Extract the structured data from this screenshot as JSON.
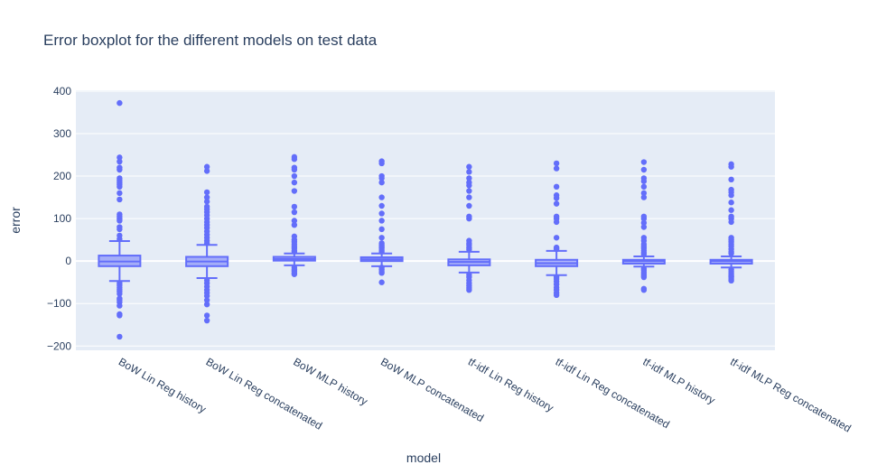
{
  "chart_data": {
    "type": "box",
    "title": "Error boxplot for the different models on test data",
    "xlabel": "model",
    "ylabel": "error",
    "ylim": [
      -210,
      402
    ],
    "yticks": [
      -200,
      -100,
      0,
      100,
      200,
      300,
      400
    ],
    "ytick_labels": [
      "−200",
      "−100",
      "0",
      "100",
      "200",
      "300",
      "400"
    ],
    "grid": true,
    "color": "#636efa",
    "plot_bg": "#e5ecf6",
    "categories": [
      "BoW Lin Reg history",
      "BoW Lin Reg concatenated",
      "BoW MLP history",
      "BoW MLP concatenated",
      "tf-idf Lin Reg history",
      "tf-idf Lin Reg concatenated",
      "tf-idf MLP history",
      "tf-idf MLP Reg concatenated"
    ],
    "boxes": [
      {
        "q1": -12,
        "median": -1,
        "q3": 13,
        "lower_fence": -47,
        "upper_fence": 47,
        "outliers": [
          372,
          244,
          234,
          220,
          215,
          195,
          190,
          185,
          180,
          175,
          160,
          145,
          110,
          105,
          100,
          95,
          80,
          75,
          60,
          52,
          -52,
          -57,
          -62,
          -67,
          -72,
          -77,
          -88,
          -92,
          -97,
          -105,
          -125,
          -128,
          -178
        ]
      },
      {
        "q1": -12,
        "median": -1,
        "q3": 10,
        "lower_fence": -40,
        "upper_fence": 38,
        "outliers": [
          222,
          212,
          162,
          150,
          140,
          128,
          122,
          115,
          108,
          100,
          92,
          85,
          78,
          70,
          62,
          55,
          48,
          42,
          -45,
          -52,
          -60,
          -68,
          -75,
          -82,
          -92,
          -102,
          -128,
          -140
        ]
      },
      {
        "q1": 1,
        "median": 5,
        "q3": 10,
        "lower_fence": -10,
        "upper_fence": 18,
        "outliers": [
          245,
          240,
          220,
          215,
          200,
          185,
          165,
          128,
          115,
          95,
          85,
          58,
          50,
          45,
          40,
          35,
          30,
          25,
          22,
          -15,
          -20,
          -24,
          -28,
          -31
        ]
      },
      {
        "q1": 0,
        "median": 4,
        "q3": 9,
        "lower_fence": -12,
        "upper_fence": 18,
        "outliers": [
          235,
          230,
          200,
          195,
          185,
          150,
          130,
          112,
          95,
          75,
          55,
          42,
          38,
          34,
          30,
          26,
          22,
          -15,
          -20,
          -25,
          -28,
          -50
        ]
      },
      {
        "q1": -10,
        "median": -2,
        "q3": 4,
        "lower_fence": -27,
        "upper_fence": 22,
        "outliers": [
          222,
          210,
          195,
          185,
          178,
          165,
          150,
          130,
          105,
          100,
          48,
          42,
          38,
          32,
          27,
          -32,
          -38,
          -45,
          -52,
          -58,
          -63,
          -68
        ]
      },
      {
        "q1": -12,
        "median": -5,
        "q3": 3,
        "lower_fence": -33,
        "upper_fence": 24,
        "outliers": [
          230,
          218,
          175,
          155,
          148,
          135,
          105,
          100,
          92,
          55,
          32,
          28,
          -38,
          -42,
          -48,
          -55,
          -62,
          -68,
          -75,
          -80
        ]
      },
      {
        "q1": -6,
        "median": 0,
        "q3": 3,
        "lower_fence": -13,
        "upper_fence": 11,
        "outliers": [
          233,
          215,
          195,
          188,
          175,
          160,
          150,
          105,
          100,
          90,
          80,
          55,
          48,
          40,
          35,
          30,
          25,
          20,
          16,
          -18,
          -22,
          -26,
          -30,
          -34,
          -38,
          -65,
          -68
        ]
      },
      {
        "q1": -6,
        "median": 0,
        "q3": 3,
        "lower_fence": -15,
        "upper_fence": 11,
        "outliers": [
          228,
          222,
          192,
          168,
          162,
          155,
          138,
          120,
          105,
          100,
          92,
          55,
          50,
          45,
          40,
          35,
          28,
          22,
          18,
          -20,
          -25,
          -30,
          -35,
          -38,
          -42,
          -46
        ]
      }
    ]
  }
}
